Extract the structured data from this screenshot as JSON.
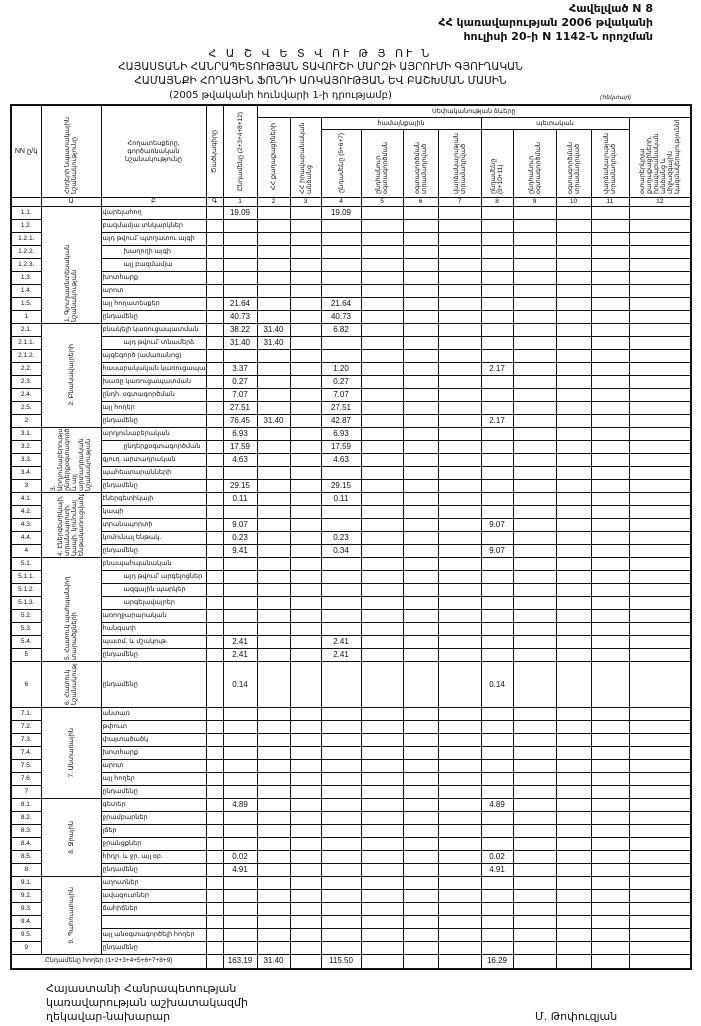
{
  "annex": {
    "line1": "Հավելված N 8",
    "line2": "ՀՀ կառավարության 2006 թվականի",
    "line3": "հուլիսի 20-ի N 1142-Ն որոշման"
  },
  "title": {
    "line1": "Հ Ա Շ Վ Ե Տ Վ ՈՒ Թ Յ ՈՒ Ն",
    "line2": "ՀԱՅԱՍՏԱՆԻ ՀԱՆՐԱՊԵՏՈՒԹՅԱՆ ՏԱՎՈՒՇԻ ՄԱՐԶԻ ԱՅՐՈՒՄԻ ԳՅՈՒՂԱԿԱՆ",
    "line3": "ՀԱՄԱՅՆՔԻ ՀՈՂԱՅԻՆ ՖՈՆԴԻ ԱՌԿԱՅՈՒԹՅԱՆ ԵՎ ԲԱՇԽՄԱՆ ՄԱՍԻՆ",
    "line4": "(2005 թվականի հունվարի 1-ի դրությամբ)",
    "unit": "(հեկտար)"
  },
  "header": {
    "nn": "NN ը/կ",
    "category": "Հողերի նպատակային նշանակությունը",
    "name": "Հողատեսքերը, գործառնական նշանակությունը",
    "c0": "Ծածկագիրը",
    "c1": "Ընդամենը (2+3+4+8+12)",
    "ownership": "Սեփականության ձևերը",
    "c2": "ՀՀ քաղաքացիների",
    "c3": "ՀՀ իրավաբանական անձանց",
    "community": "համայնքային",
    "state": "պետական",
    "c4": "ընդամենը (5+6+7)",
    "c5": "ընդհանուր օգտագործման",
    "c6": "օգտագործման տրամադրված",
    "c7": "վարձակալության տրամադրված",
    "c8": "ընդամենը (9+10+11)",
    "c9": "ընդհանուր օգտագործման",
    "c10": "օգտագործման տրամադրված",
    "c11": "վարձակալության տրամադրված",
    "c12": "օտարերկրյա քաղաքացիների, իրավաբանական անձանց և միջազգային կազմակերպությունների",
    "index": [
      "Ա",
      "Բ",
      "Գ",
      "1",
      "2",
      "3",
      "4",
      "5",
      "6",
      "7",
      "8",
      "9",
      "10",
      "11",
      "12"
    ]
  },
  "sections": [
    {
      "category": "1. Գյուղատնտեսական նշանակության",
      "rows": [
        {
          "nn": "1.1.",
          "name": "վարելահող",
          "indent": 0,
          "values": {
            "1": "19.09",
            "4": "19.09"
          }
        },
        {
          "nn": "1.2.",
          "name": "բազմամյա տնկարկներ",
          "indent": 0,
          "values": {}
        },
        {
          "nn": "1.2.1.",
          "name": "այդ թվում՝ պտղատու այգի",
          "indent": 0,
          "values": {}
        },
        {
          "nn": "1.2.2.",
          "name": "խաղողի այգի",
          "indent": 1,
          "values": {}
        },
        {
          "nn": "1.2.3.",
          "name": "այլ բազմամյա",
          "indent": 1,
          "values": {}
        },
        {
          "nn": "1.3.",
          "name": "խոտհարք",
          "indent": 0,
          "values": {}
        },
        {
          "nn": "1.4.",
          "name": "արոտ",
          "indent": 0,
          "values": {}
        },
        {
          "nn": "1.5.",
          "name": "այլ հողատեսքեր",
          "indent": 0,
          "values": {
            "1": "21.64",
            "4": "21.64"
          }
        },
        {
          "nn": "1",
          "name": "ընդամենը",
          "indent": 0,
          "values": {
            "1": "40.73",
            "4": "40.73"
          }
        }
      ]
    },
    {
      "category": "2. Բնակավայրերի",
      "rows": [
        {
          "nn": "2.1.",
          "name": "բնակելի կառուցապատման",
          "indent": 0,
          "values": {
            "1": "38.22",
            "2": "31.40",
            "4": "6.82"
          }
        },
        {
          "nn": "2.1.1.",
          "name": "այդ թվում՝ տնամերձ",
          "indent": 1,
          "values": {
            "1": "31.40",
            "2": "31.40"
          }
        },
        {
          "nn": "2.1.2.",
          "name": "այգեգործ (ամառանոց)",
          "indent": 0,
          "values": {}
        },
        {
          "nn": "2.2.",
          "name": "հասարակական կառուցապատման",
          "indent": 0,
          "values": {
            "1": "3.37",
            "4": "1.20",
            "8": "2.17"
          }
        },
        {
          "nn": "2.3.",
          "name": "խառը կառուցապատման",
          "indent": 0,
          "values": {
            "1": "0.27",
            "4": "0.27"
          }
        },
        {
          "nn": "2.4.",
          "name": "ընդհ. օգտագործման",
          "indent": 0,
          "values": {
            "1": "7.07",
            "4": "7.07"
          }
        },
        {
          "nn": "2.5.",
          "name": "այլ հողեր",
          "indent": 0,
          "values": {
            "1": "27.51",
            "4": "27.51"
          }
        },
        {
          "nn": "2",
          "name": "ընդամենը",
          "indent": 0,
          "values": {
            "1": "76.45",
            "2": "31.40",
            "4": "42.87",
            "8": "2.17"
          }
        }
      ]
    },
    {
      "category": "3. Արդյունաբերության, ընդերքօգտագործման և այլ արտադրական նշանակության",
      "rows": [
        {
          "nn": "3.1.",
          "name": "արդյունաբերական",
          "indent": 0,
          "values": {
            "1": "6.93",
            "4": "6.93"
          }
        },
        {
          "nn": "3.2.",
          "name": "ընդերքօգտագործման",
          "indent": 1,
          "values": {
            "1": "17.59",
            "4": "17.59"
          }
        },
        {
          "nn": "3.3.",
          "name": "գյուղ. արտադրական",
          "indent": 0,
          "values": {
            "1": "4.63",
            "4": "4.63"
          }
        },
        {
          "nn": "3.4.",
          "name": "պահեստարանների",
          "indent": 0,
          "values": {}
        },
        {
          "nn": "3",
          "name": "ընդամենը",
          "indent": 0,
          "values": {
            "1": "29.15",
            "4": "29.15"
          }
        }
      ]
    },
    {
      "category": "4. Էներգետիկայի, տրանսպորտի, կապի, կոմունալ ենթակառուցվածքների",
      "rows": [
        {
          "nn": "4.1.",
          "name": "էներգետիկայի",
          "indent": 0,
          "values": {
            "1": "0.11",
            "4": "0.11"
          }
        },
        {
          "nn": "4.2.",
          "name": "կապի",
          "indent": 0,
          "values": {}
        },
        {
          "nn": "4.3.",
          "name": "տրանսպորտի",
          "indent": 0,
          "values": {
            "1": "9.07",
            "8": "9.07"
          }
        },
        {
          "nn": "4.4.",
          "name": "կոմունալ ենթակ.",
          "indent": 0,
          "values": {
            "1": "0.23",
            "4": "0.23"
          }
        },
        {
          "nn": "4",
          "name": "ընդամենը",
          "indent": 0,
          "values": {
            "1": "9.41",
            "4": "0.34",
            "8": "9.07"
          }
        }
      ]
    },
    {
      "category": "5. Հատուկ պահպանվող տարածքների",
      "rows": [
        {
          "nn": "5.1.",
          "name": "բնապահպանական",
          "indent": 0,
          "values": {}
        },
        {
          "nn": "5.1.1.",
          "name": "այդ թվում՝ արգելոցներ",
          "indent": 1,
          "values": {}
        },
        {
          "nn": "5.1.2.",
          "name": "ազգային պարկեր",
          "indent": 1,
          "values": {}
        },
        {
          "nn": "5.1.3.",
          "name": "արգելավայրեր",
          "indent": 1,
          "values": {}
        },
        {
          "nn": "5.2.",
          "name": "առողջարարական",
          "indent": 0,
          "values": {}
        },
        {
          "nn": "5.3.",
          "name": "հանգստի",
          "indent": 0,
          "values": {}
        },
        {
          "nn": "5.4.",
          "name": "պատմ. և մշակութ.",
          "indent": 0,
          "values": {
            "1": "2.41",
            "4": "2.41"
          }
        },
        {
          "nn": "5",
          "name": "ընդամենը",
          "indent": 0,
          "values": {
            "1": "2.41",
            "4": "2.41"
          }
        }
      ]
    },
    {
      "category": "6. Հատուկ նշանակության",
      "tall": true,
      "rows": [
        {
          "nn": "6",
          "name": "ընդամենը",
          "indent": 0,
          "values": {
            "1": "0.14",
            "8": "0.14"
          }
        }
      ]
    },
    {
      "category": "7. Անտառային",
      "rows": [
        {
          "nn": "7.1.",
          "name": "անտառ",
          "indent": 0,
          "values": {}
        },
        {
          "nn": "7.2.",
          "name": "թփուտ",
          "indent": 0,
          "values": {}
        },
        {
          "nn": "7.3.",
          "name": "փայտածածկ",
          "indent": 0,
          "values": {}
        },
        {
          "nn": "7.4.",
          "name": "խոտհարք",
          "indent": 0,
          "values": {}
        },
        {
          "nn": "7.5.",
          "name": "արոտ",
          "indent": 0,
          "values": {}
        },
        {
          "nn": "7.6.",
          "name": "այլ հողեր",
          "indent": 0,
          "values": {}
        },
        {
          "nn": "7",
          "name": "ընդամենը",
          "indent": 0,
          "values": {}
        }
      ]
    },
    {
      "category": "8. Ջրային",
      "rows": [
        {
          "nn": "8.1.",
          "name": "գետեր",
          "indent": 0,
          "values": {
            "1": "4.89",
            "8": "4.89"
          }
        },
        {
          "nn": "8.2.",
          "name": "ջրամբարներ",
          "indent": 0,
          "values": {}
        },
        {
          "nn": "8.3.",
          "name": "լճեր",
          "indent": 0,
          "values": {}
        },
        {
          "nn": "8.4.",
          "name": "ջրանցքներ",
          "indent": 0,
          "values": {}
        },
        {
          "nn": "8.5.",
          "name": "հիդր. և ջր. այլ օբ.",
          "indent": 0,
          "values": {
            "1": "0.02",
            "8": "0.02"
          }
        },
        {
          "nn": "8",
          "name": "ընդամենը",
          "indent": 0,
          "values": {
            "1": "4.91",
            "8": "4.91"
          }
        }
      ]
    },
    {
      "category": "9. Պահուստային",
      "rows": [
        {
          "nn": "9.1.",
          "name": "աղուտներ",
          "indent": 0,
          "values": {}
        },
        {
          "nn": "9.2.",
          "name": "ավազուտներ",
          "indent": 0,
          "values": {}
        },
        {
          "nn": "9.3.",
          "name": "ճահիճներ",
          "indent": 0,
          "values": {}
        },
        {
          "nn": "9.4.",
          "name": "",
          "indent": 0,
          "values": {}
        },
        {
          "nn": "9.5.",
          "name": "այլ անօգտագործելի հողեր",
          "indent": 0,
          "values": {}
        },
        {
          "nn": "9",
          "name": "ընդամենը",
          "indent": 0,
          "values": {}
        }
      ]
    }
  ],
  "total": {
    "label": "Ընդամենը հողեր (1+2+3+4+5+6+7+8+9)",
    "values": {
      "1": "163.19",
      "2": "31.40",
      "4": "115.50",
      "8": "16.29"
    }
  },
  "signature": {
    "line1": "Հայաստանի Հանրապետության",
    "line2": "կառավարության աշխատակազմի",
    "line3": "ղեկավար-նախարար",
    "name": "Մ. Թոփուզյան"
  }
}
